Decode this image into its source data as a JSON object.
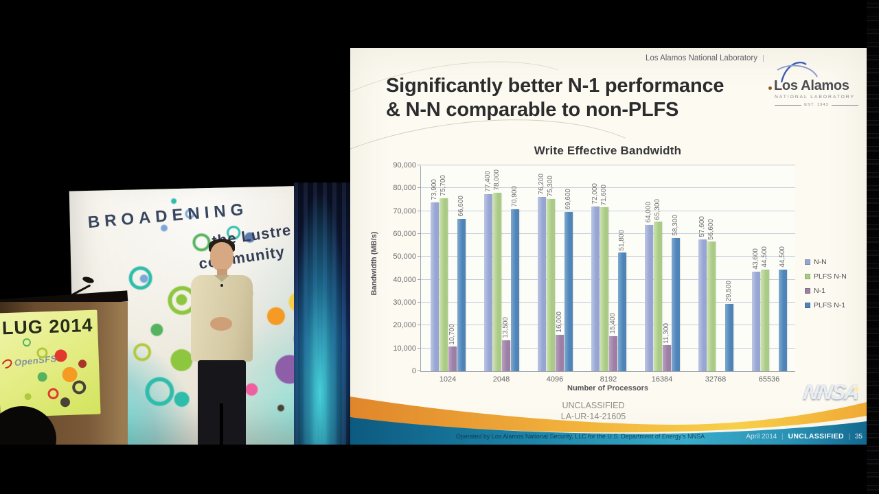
{
  "stage": {
    "banner": {
      "line1": "BROADENING",
      "line2": "the Lustre",
      "line3": "community"
    },
    "podium": {
      "sign_title": "LUG 2014",
      "org": "OpenSFS"
    }
  },
  "slide": {
    "header_org": "Los Alamos National Laboratory",
    "title_line1": "Significantly better N-1 performance",
    "title_line2": "& N-N comparable to non-PLFS",
    "logo": {
      "name": "Los Alamos",
      "subtitle": "NATIONAL LABORATORY",
      "est": "EST. 1943"
    },
    "classification": "UNCLASSIFIED",
    "report_number": "LA-UR-14-21605",
    "footer": {
      "operated": "Operated by Los Alamos National Security, LLC for the U.S. Department of Energy's NNSA",
      "date": "April 2014",
      "separator": "|",
      "classification": "UNCLASSIFIED",
      "slide_number": "35",
      "nnsa_label": "NNSA"
    }
  },
  "chart_data": {
    "type": "bar",
    "title": "Write Effective Bandwidth",
    "xlabel": "Number of Processors",
    "ylabel": "Bandwidth (MB/s)",
    "ylim": [
      0,
      90000
    ],
    "ytick_step": 10000,
    "grid": true,
    "legend_position": "right",
    "categories": [
      "1024",
      "2048",
      "4096",
      "8192",
      "16384",
      "32768",
      "65536"
    ],
    "series": [
      {
        "name": "N-N",
        "color": "#96a5d1",
        "color2": "#bcc6e4",
        "values": [
          73900,
          77400,
          76200,
          72000,
          64000,
          57600,
          43600
        ]
      },
      {
        "name": "PLFS N-N",
        "color": "#a9cb85",
        "color2": "#cde2ae",
        "values": [
          75700,
          78000,
          75300,
          71600,
          65300,
          56600,
          44500
        ]
      },
      {
        "name": "N-1",
        "color": "#9d7fa6",
        "color2": "#b89fc0",
        "values": [
          10700,
          13500,
          16000,
          15400,
          11300,
          null,
          null
        ]
      },
      {
        "name": "PLFS N-1",
        "color": "#4e84b8",
        "color2": "#7fa9d0",
        "values": [
          66600,
          70900,
          69600,
          51800,
          58300,
          29500,
          44500
        ]
      }
    ]
  },
  "palette": {
    "lime": "#8dc63f",
    "green": "#55b35f",
    "olive": "#b2c83c",
    "teal": "#2ebcab",
    "cyan": "#49dbe2",
    "blue": "#7da7d9",
    "navy": "#5a7ab0",
    "red": "#e2392f",
    "pink": "#ee5fa0",
    "orange": "#f59a22",
    "yellow": "#f7d046",
    "purple": "#8e5fa8",
    "gray": "#8b8b8b",
    "dark": "#4a4238",
    "darkred": "#a8342a"
  }
}
